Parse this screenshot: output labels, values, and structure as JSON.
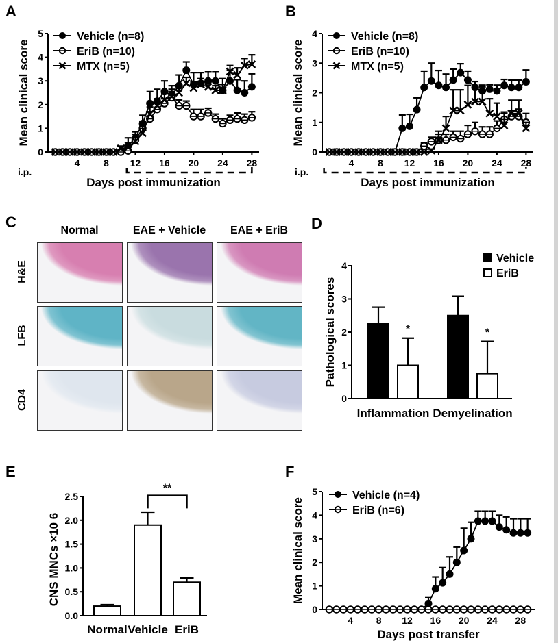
{
  "panels": {
    "A": "A",
    "B": "B",
    "C": "C",
    "D": "D",
    "E": "E",
    "F": "F"
  },
  "histology": {
    "columns": [
      "Normal",
      "EAE + Vehicle",
      "EAE + EriB"
    ],
    "rows": [
      "H&E",
      "LFB",
      "CD4"
    ],
    "colors": {
      "H&E": [
        "#d77fb0",
        "#9a74ad",
        "#cf7cb2"
      ],
      "LFB": [
        "#5fb4c6",
        "#c9dcdf",
        "#62b5c5"
      ],
      "CD4": [
        "#dfe6ee",
        "#b9a68a",
        "#c7cbe0"
      ]
    }
  },
  "chart_data": [
    {
      "id": "A",
      "type": "line",
      "title": "",
      "xlabel": "Days post immunization",
      "ylabel": "Mean clinical score",
      "xlim": [
        0,
        29
      ],
      "ylim": [
        0,
        5
      ],
      "xticks": [
        4,
        8,
        12,
        16,
        20,
        24,
        28
      ],
      "yticks": [
        0,
        1,
        2,
        3,
        4,
        5
      ],
      "annotation": "i.p.",
      "treatment_bar": [
        11,
        28
      ],
      "legend_position": "top-left",
      "x": [
        1,
        2,
        3,
        4,
        5,
        6,
        7,
        8,
        9,
        10,
        11,
        12,
        13,
        14,
        15,
        16,
        17,
        18,
        19,
        20,
        21,
        22,
        23,
        24,
        25,
        26,
        27,
        28
      ],
      "series": [
        {
          "name": "Vehicle (n=8)",
          "marker": "filled-circle",
          "values": [
            0,
            0,
            0,
            0,
            0,
            0,
            0,
            0,
            0,
            0,
            0.25,
            0.6,
            1.2,
            2.05,
            2.15,
            2.55,
            2.4,
            2.8,
            3.45,
            2.85,
            2.9,
            3.0,
            3.0,
            2.6,
            3.0,
            2.6,
            2.5,
            2.75
          ],
          "errors": [
            0,
            0,
            0,
            0,
            0,
            0,
            0,
            0,
            0,
            0,
            0.35,
            0.25,
            0.35,
            0.5,
            0.5,
            0.45,
            0.4,
            0.45,
            0.35,
            0.5,
            0.45,
            0.4,
            0.4,
            0.5,
            0.45,
            0.45,
            0.5,
            0.55
          ]
        },
        {
          "name": "EriB (n=10)",
          "marker": "open-circle",
          "values": [
            0,
            0,
            0,
            0,
            0,
            0,
            0,
            0,
            0,
            0,
            0.05,
            0.5,
            1.0,
            1.4,
            1.8,
            2.05,
            2.3,
            1.95,
            1.95,
            1.5,
            1.5,
            1.65,
            1.4,
            1.2,
            1.35,
            1.4,
            1.35,
            1.45
          ],
          "errors": [
            0,
            0,
            0,
            0,
            0,
            0,
            0,
            0,
            0,
            0,
            0.05,
            0.25,
            0.3,
            0.3,
            0.3,
            0.2,
            0.25,
            0.25,
            0.2,
            0.3,
            0.3,
            0.2,
            0.2,
            0.2,
            0.2,
            0.25,
            0.25,
            0.25
          ]
        },
        {
          "name": "MTX (n=5)",
          "marker": "x",
          "values": [
            0,
            0,
            0,
            0,
            0,
            0,
            0,
            0,
            0,
            0.15,
            0.2,
            0.45,
            0.8,
            1.6,
            1.95,
            2.2,
            2.35,
            2.5,
            2.9,
            2.7,
            2.85,
            2.75,
            2.6,
            2.6,
            3.4,
            3.25,
            3.65,
            3.7
          ],
          "errors": [
            0,
            0,
            0,
            0,
            0,
            0,
            0,
            0,
            0,
            0.1,
            0.2,
            0.2,
            0.3,
            0.3,
            0.3,
            0.25,
            0.3,
            0.2,
            0.25,
            0.25,
            0.25,
            0.2,
            0.2,
            0.25,
            0.25,
            0.3,
            0.3,
            0.4
          ]
        }
      ]
    },
    {
      "id": "B",
      "type": "line",
      "title": "",
      "xlabel": "Days post immunization",
      "ylabel": "Mean clinical score",
      "xlim": [
        0,
        29
      ],
      "ylim": [
        0,
        4
      ],
      "xticks": [
        4,
        8,
        12,
        16,
        20,
        24,
        28
      ],
      "yticks": [
        0,
        1,
        2,
        3,
        4
      ],
      "annotation": "i.p.",
      "treatment_bar": [
        1,
        28
      ],
      "legend_position": "top-left",
      "x": [
        1,
        2,
        3,
        4,
        5,
        6,
        7,
        8,
        9,
        10,
        11,
        12,
        13,
        14,
        15,
        16,
        17,
        18,
        19,
        20,
        21,
        22,
        23,
        24,
        25,
        26,
        27,
        28
      ],
      "series": [
        {
          "name": "Vehicle (n=8)",
          "marker": "filled-circle",
          "values": [
            0,
            0,
            0,
            0,
            0,
            0,
            0,
            0,
            0,
            0,
            0.8,
            0.87,
            1.43,
            2.18,
            2.4,
            2.25,
            2.18,
            2.43,
            2.68,
            2.43,
            2.18,
            2.06,
            2.12,
            2.06,
            2.25,
            2.18,
            2.18,
            2.37
          ],
          "errors": [
            0,
            0,
            0,
            0,
            0,
            0,
            0,
            0,
            0,
            0,
            0.45,
            0.4,
            0.4,
            0.55,
            0.6,
            0.5,
            0.45,
            0.37,
            0.3,
            0.3,
            0.2,
            0.2,
            0.15,
            0.2,
            0.2,
            0.25,
            0.25,
            0.4
          ]
        },
        {
          "name": "EriB (n=10)",
          "marker": "open-circle",
          "values": [
            0,
            0,
            0,
            0,
            0,
            0,
            0,
            0,
            0,
            0,
            0,
            0,
            0,
            0.2,
            0.35,
            0.4,
            0.4,
            0.5,
            0.45,
            0.6,
            0.7,
            0.6,
            0.6,
            0.8,
            1.1,
            1.2,
            1.2,
            1.0
          ],
          "errors": [
            0,
            0,
            0,
            0,
            0,
            0,
            0,
            0,
            0,
            0,
            0,
            0,
            0,
            0.1,
            0.15,
            0.2,
            0.2,
            0.2,
            0.25,
            0.3,
            0.3,
            0.25,
            0.25,
            0.25,
            0.25,
            0.2,
            0.25,
            0.3
          ]
        },
        {
          "name": "MTX (n=5)",
          "marker": "x",
          "values": [
            0,
            0,
            0,
            0,
            0,
            0,
            0,
            0,
            0,
            0,
            0,
            0,
            0,
            0,
            0.05,
            0.4,
            0.8,
            1.4,
            1.4,
            1.6,
            1.7,
            1.7,
            1.3,
            1.2,
            0.9,
            1.3,
            1.3,
            0.8
          ],
          "errors": [
            0,
            0,
            0,
            0,
            0,
            0,
            0,
            0,
            0,
            0,
            0,
            0,
            0,
            0,
            0.05,
            0.3,
            0.4,
            0.7,
            0.7,
            0.65,
            0.45,
            0.5,
            0.5,
            0.45,
            0.4,
            0.45,
            0.45,
            0.2
          ]
        }
      ]
    },
    {
      "id": "D",
      "type": "bar",
      "title": "",
      "xlabel": "",
      "ylabel": "Pathological scores",
      "categories": [
        "Inflammation",
        "Demyelination"
      ],
      "ylim": [
        0,
        4
      ],
      "yticks": [
        0,
        1,
        2,
        3,
        4
      ],
      "legend_position": "top-right",
      "series": [
        {
          "name": "Vehicle",
          "fill": "#000000",
          "values": [
            2.25,
            2.5
          ],
          "errors": [
            0.5,
            0.58
          ]
        },
        {
          "name": "EriB",
          "fill": "#ffffff",
          "values": [
            1.0,
            0.75
          ],
          "errors": [
            0.82,
            0.97
          ]
        }
      ],
      "significance": [
        "*",
        "*"
      ]
    },
    {
      "id": "E",
      "type": "bar",
      "title": "",
      "xlabel": "",
      "ylabel": "CNS MNCs ×10 6",
      "categories": [
        "Normal",
        "Vehicle",
        "EriB"
      ],
      "ylim": [
        0,
        2.5
      ],
      "yticks": [
        "0.0",
        "0.5",
        "1.0",
        "1.5",
        "2.0",
        "2.5"
      ],
      "values": [
        0.2,
        1.9,
        0.7
      ],
      "errors": [
        0.03,
        0.27,
        0.09
      ],
      "significance": {
        "label": "**",
        "between": [
          "Vehicle",
          "EriB"
        ]
      }
    },
    {
      "id": "F",
      "type": "line",
      "title": "",
      "xlabel": "Days post transfer",
      "ylabel": "Mean clinical score",
      "xlim": [
        0,
        30
      ],
      "ylim": [
        0,
        5
      ],
      "xticks": [
        4,
        8,
        12,
        16,
        20,
        24,
        28
      ],
      "yticks": [
        0,
        1,
        2,
        3,
        4,
        5
      ],
      "legend_position": "top-left",
      "x": [
        1,
        2,
        3,
        4,
        5,
        6,
        7,
        8,
        9,
        10,
        11,
        12,
        13,
        14,
        15,
        16,
        17,
        18,
        19,
        20,
        21,
        22,
        23,
        24,
        25,
        26,
        27,
        28,
        29
      ],
      "series": [
        {
          "name": "Vehicle (n=4)",
          "marker": "filled-circle",
          "values": [
            0,
            0,
            0,
            0,
            0,
            0,
            0,
            0,
            0,
            0,
            0,
            0,
            0,
            0,
            0.25,
            0.88,
            1.13,
            1.5,
            2.0,
            2.5,
            3.0,
            3.75,
            3.75,
            3.75,
            3.5,
            3.38,
            3.25,
            3.25,
            3.25
          ],
          "errors": [
            0,
            0,
            0,
            0,
            0,
            0,
            0,
            0,
            0,
            0,
            0,
            0,
            0,
            0,
            0.25,
            0.5,
            0.65,
            0.73,
            0.65,
            0.95,
            0.7,
            0.42,
            0.42,
            0.42,
            0.5,
            0.55,
            0.6,
            0.6,
            0.6
          ]
        },
        {
          "name": "EriB (n=6)",
          "marker": "open-circle",
          "values": [
            0,
            0,
            0,
            0,
            0,
            0,
            0,
            0,
            0,
            0,
            0,
            0,
            0,
            0,
            0,
            0,
            0,
            0,
            0,
            0,
            0,
            0,
            0,
            0,
            0,
            0,
            0,
            0,
            0
          ],
          "errors": [
            0,
            0,
            0,
            0,
            0,
            0,
            0,
            0,
            0,
            0,
            0,
            0,
            0,
            0,
            0,
            0,
            0,
            0,
            0,
            0,
            0,
            0,
            0,
            0,
            0,
            0,
            0,
            0,
            0
          ]
        }
      ]
    }
  ]
}
